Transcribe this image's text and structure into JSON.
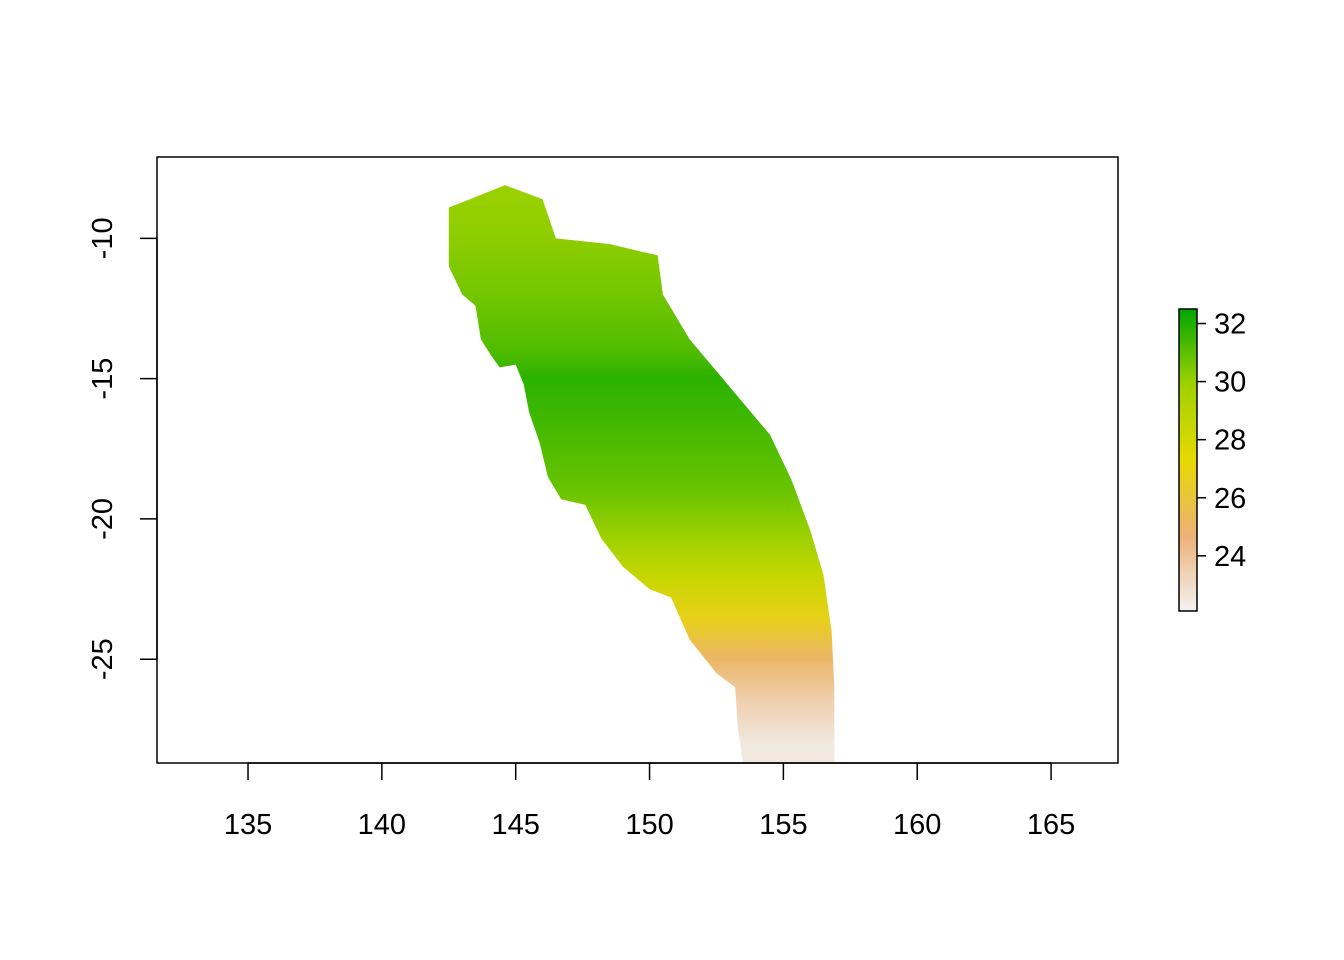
{
  "chart_data": {
    "type": "heatmap",
    "title": "",
    "xlabel": "",
    "ylabel": "",
    "xlim": [
      131.6,
      167.5
    ],
    "ylim": [
      -28.7,
      -7.1
    ],
    "x_ticks": [
      "135",
      "140",
      "145",
      "150",
      "155",
      "160",
      "165"
    ],
    "x_tick_values": [
      135,
      140,
      145,
      150,
      155,
      160,
      165
    ],
    "y_ticks": [
      "-10",
      "-15",
      "-20",
      "-25"
    ],
    "y_tick_values": [
      -10,
      -15,
      -20,
      -25
    ],
    "legend": {
      "placement": "right",
      "range": [
        22.1,
        32.5
      ],
      "ticks": [
        "24",
        "26",
        "28",
        "30",
        "32"
      ],
      "tick_values": [
        24,
        26,
        28,
        30,
        32
      ],
      "colors": [
        "#f2f2f2",
        "#ecb176",
        "#e6d900",
        "#9fd200",
        "#00a600"
      ]
    },
    "region_outline": [
      [
        142.5,
        -8.9
      ],
      [
        143.3,
        -8.6
      ],
      [
        144.6,
        -8.1
      ],
      [
        146.0,
        -8.6
      ],
      [
        146.5,
        -10.0
      ],
      [
        147.5,
        -10.1
      ],
      [
        148.5,
        -10.2
      ],
      [
        149.8,
        -10.5
      ],
      [
        150.3,
        -10.6
      ],
      [
        150.5,
        -12.0
      ],
      [
        151.5,
        -13.6
      ],
      [
        153.0,
        -15.3
      ],
      [
        154.5,
        -17.0
      ],
      [
        155.3,
        -18.6
      ],
      [
        156.0,
        -20.4
      ],
      [
        156.5,
        -22.0
      ],
      [
        156.8,
        -24.0
      ],
      [
        156.9,
        -26.0
      ],
      [
        156.9,
        -28.7
      ],
      [
        153.5,
        -28.7
      ],
      [
        153.3,
        -27.5
      ],
      [
        153.2,
        -26.0
      ],
      [
        152.5,
        -25.5
      ],
      [
        151.5,
        -24.3
      ],
      [
        150.8,
        -22.8
      ],
      [
        150.0,
        -22.5
      ],
      [
        149.0,
        -21.7
      ],
      [
        148.2,
        -20.7
      ],
      [
        147.6,
        -19.5
      ],
      [
        146.7,
        -19.3
      ],
      [
        146.2,
        -18.5
      ],
      [
        145.9,
        -17.3
      ],
      [
        145.5,
        -16.2
      ],
      [
        145.3,
        -15.2
      ],
      [
        145.0,
        -14.5
      ],
      [
        144.4,
        -14.6
      ],
      [
        144.1,
        -14.2
      ],
      [
        143.7,
        -13.6
      ],
      [
        143.5,
        -12.4
      ],
      [
        143.0,
        -12.0
      ],
      [
        142.5,
        -11.0
      ],
      [
        142.5,
        -8.9
      ]
    ],
    "value_field": [
      {
        "lat": -8.5,
        "lon_min": 142.5,
        "lon_max": 146.5,
        "value": 30.0
      },
      {
        "lat": -10,
        "lon_min": 142.5,
        "lon_max": 150.3,
        "value": 30.2
      },
      {
        "lat": -12,
        "lon_min": 143.0,
        "lon_max": 150.5,
        "value": 30.6
      },
      {
        "lat": -14,
        "lon_min": 143.7,
        "lon_max": 152.0,
        "value": 31.2
      },
      {
        "lat": -15,
        "lon_min": 145.2,
        "lon_max": 153.0,
        "value": 31.8
      },
      {
        "lat": -17,
        "lon_min": 145.9,
        "lon_max": 154.6,
        "value": 31.3
      },
      {
        "lat": -19,
        "lon_min": 146.5,
        "lon_max": 155.5,
        "value": 30.8
      },
      {
        "lat": -20.5,
        "lon_min": 148.3,
        "lon_max": 156.0,
        "value": 30.0
      },
      {
        "lat": -22,
        "lon_min": 149.8,
        "lon_max": 156.5,
        "value": 28.5
      },
      {
        "lat": -23.5,
        "lon_min": 151.2,
        "lon_max": 156.8,
        "value": 26.8
      },
      {
        "lat": -25,
        "lon_min": 152.3,
        "lon_max": 156.9,
        "value": 25.0
      },
      {
        "lat": -26.5,
        "lon_min": 153.2,
        "lon_max": 156.9,
        "value": 23.5
      },
      {
        "lat": -28,
        "lon_min": 153.4,
        "lon_max": 156.9,
        "value": 22.5
      }
    ]
  }
}
